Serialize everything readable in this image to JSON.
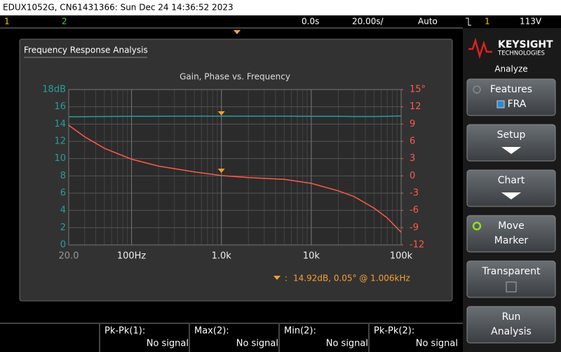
{
  "header": {
    "title": "EDUX1052G, CN61431366: Sun Dec 24 14:36:52 2023"
  },
  "status_bar": {
    "channel_1": "1",
    "channel_2": "2",
    "time_offset": "0.0s",
    "time_scale": "20.00s/",
    "trigger_mode": "Auto",
    "trigger_source": "1",
    "trigger_level": "113V"
  },
  "window": {
    "title": "Frequency Response Analysis"
  },
  "chart_data": {
    "type": "line",
    "title": "Gain, Phase vs. Frequency",
    "x": [
      20,
      30,
      50,
      100,
      200,
      500,
      1000,
      2000,
      5000,
      10000,
      20000,
      30000,
      50000,
      70000,
      100000
    ],
    "log_x": true,
    "grid": true,
    "xlim": [
      20,
      100000
    ],
    "xticks": [
      {
        "value": 20,
        "label": "20.0"
      },
      {
        "value": 100,
        "label": "100Hz"
      },
      {
        "value": 1000,
        "label": "1.0k"
      },
      {
        "value": 10000,
        "label": "10k"
      },
      {
        "value": 100000,
        "label": "100k"
      }
    ],
    "ylim": [
      0,
      18
    ],
    "yticks": [
      0,
      2,
      4,
      6,
      8,
      10,
      12,
      14,
      16,
      {
        "value": 18,
        "label": "18dB"
      }
    ],
    "y2lim": [
      -12,
      15
    ],
    "y2ticks": [
      -12,
      -9,
      -6,
      -3,
      0,
      3,
      6,
      9,
      12,
      {
        "value": 15,
        "label": "15°"
      }
    ],
    "series": [
      {
        "name": "Gain",
        "color": "#2a9d9d",
        "values": [
          14.85,
          14.86,
          14.88,
          14.9,
          14.91,
          14.92,
          14.92,
          14.92,
          14.92,
          14.9,
          14.9,
          14.88,
          14.88,
          14.9,
          14.95
        ]
      },
      {
        "name": "Phase",
        "color": "#ff5a4a",
        "axis": "y2",
        "values": [
          8.8,
          6.8,
          4.8,
          2.9,
          1.7,
          0.7,
          0.05,
          -0.3,
          -0.6,
          -1.3,
          -2.6,
          -3.6,
          -5.6,
          -7.3,
          -9.8
        ]
      }
    ],
    "annotation": "14.92dB, 0.05° @ 1.006kHz"
  },
  "sidebar": {
    "brand": "KEYSIGHT",
    "brand_sub": "TECHNOLOGIES",
    "menu_title": "Analyze",
    "buttons": [
      {
        "label": "Features",
        "sublabel": "FRA"
      },
      {
        "label": "Setup"
      },
      {
        "label": "Chart"
      },
      {
        "label": "Move",
        "sublabel": "Marker"
      },
      {
        "label": "Transparent"
      },
      {
        "label": "Run",
        "sublabel": "Analysis"
      }
    ]
  },
  "measurements": [
    {
      "label": "Pk-Pk(1):",
      "value": "No signal"
    },
    {
      "label": "Max(2):",
      "value": "No signal"
    },
    {
      "label": "Min(2):",
      "value": "No signal"
    },
    {
      "label": "Pk-Pk(2):",
      "value": "No signal"
    }
  ]
}
